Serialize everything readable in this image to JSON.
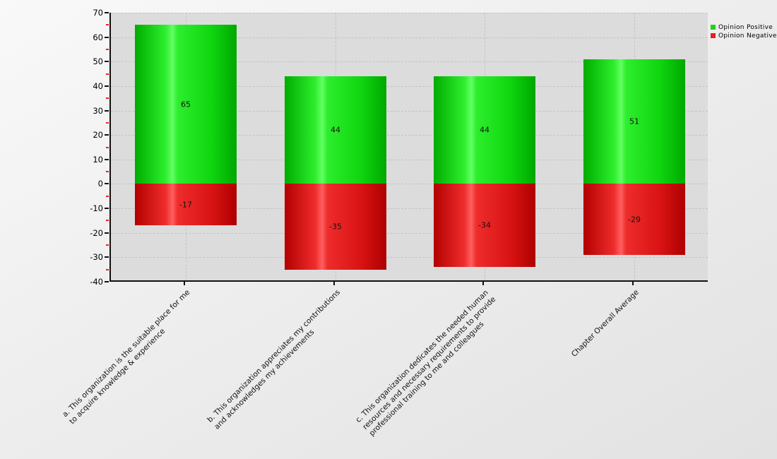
{
  "app": {
    "background_top_left": "#f9f9f9",
    "background_bottom_right": "#e2e2e2"
  },
  "chart_data": {
    "type": "bar",
    "stacked": true,
    "orientation": "vertical",
    "title": "",
    "xlabel": "",
    "ylabel": "",
    "ylim": [
      -40,
      70
    ],
    "y_major_step": 10,
    "y_minor_step": 5,
    "y_tick_labels": [
      "70",
      "60",
      "50",
      "40",
      "30",
      "20",
      "10",
      "0",
      "-10",
      "-20",
      "-30",
      "-40"
    ],
    "grid": "dashed horizontal lines every 10 units; dashed vertical line at each category center",
    "legend_position": "top-right",
    "plot_bg": "#dcdcdc",
    "grid_color": "#c3c3c3",
    "axis_color": "#111111",
    "minor_tick_color": "#ee2222",
    "categories": [
      [
        "a. This organization is the suitable place for me",
        "to acquire knowledge & experience"
      ],
      [
        "b. This organization appreciates my contributions",
        "and acknowledges my achievements"
      ],
      [
        "c. This organization dedicates the needed human",
        "resources and necessary requirements to provide",
        "professional training to me and colleagues"
      ],
      [
        "Chapter Overall Average"
      ]
    ],
    "series": [
      {
        "name": "Opinion Positive",
        "legend_color": "#1fd11f",
        "gradient_stops": [
          [
            0,
            "#00ac00"
          ],
          [
            0.3,
            "#2dee2d"
          ],
          [
            0.37,
            "#63ff63"
          ],
          [
            0.42,
            "#2dee2d"
          ],
          [
            0.75,
            "#0fd60f"
          ],
          [
            1,
            "#00a800"
          ]
        ],
        "values": [
          65,
          44,
          44,
          51
        ],
        "value_labels": [
          "65",
          "44",
          "44",
          "51"
        ]
      },
      {
        "name": "Opinion Negative",
        "legend_color": "#e32222",
        "gradient_stops": [
          [
            0,
            "#b30000"
          ],
          [
            0.3,
            "#ee2c2c"
          ],
          [
            0.37,
            "#ff5f5f"
          ],
          [
            0.42,
            "#ee2c2c"
          ],
          [
            0.75,
            "#d91313"
          ],
          [
            1,
            "#ae0000"
          ]
        ],
        "values": [
          -17,
          -35,
          -34,
          -29
        ],
        "value_labels": [
          "-17",
          "-35",
          "-34",
          "-29"
        ]
      }
    ]
  },
  "legend": {
    "items": [
      {
        "label": "Opinion Positive",
        "color": "#1fd11f"
      },
      {
        "label": "Opinion Negative",
        "color": "#e32222"
      }
    ]
  }
}
